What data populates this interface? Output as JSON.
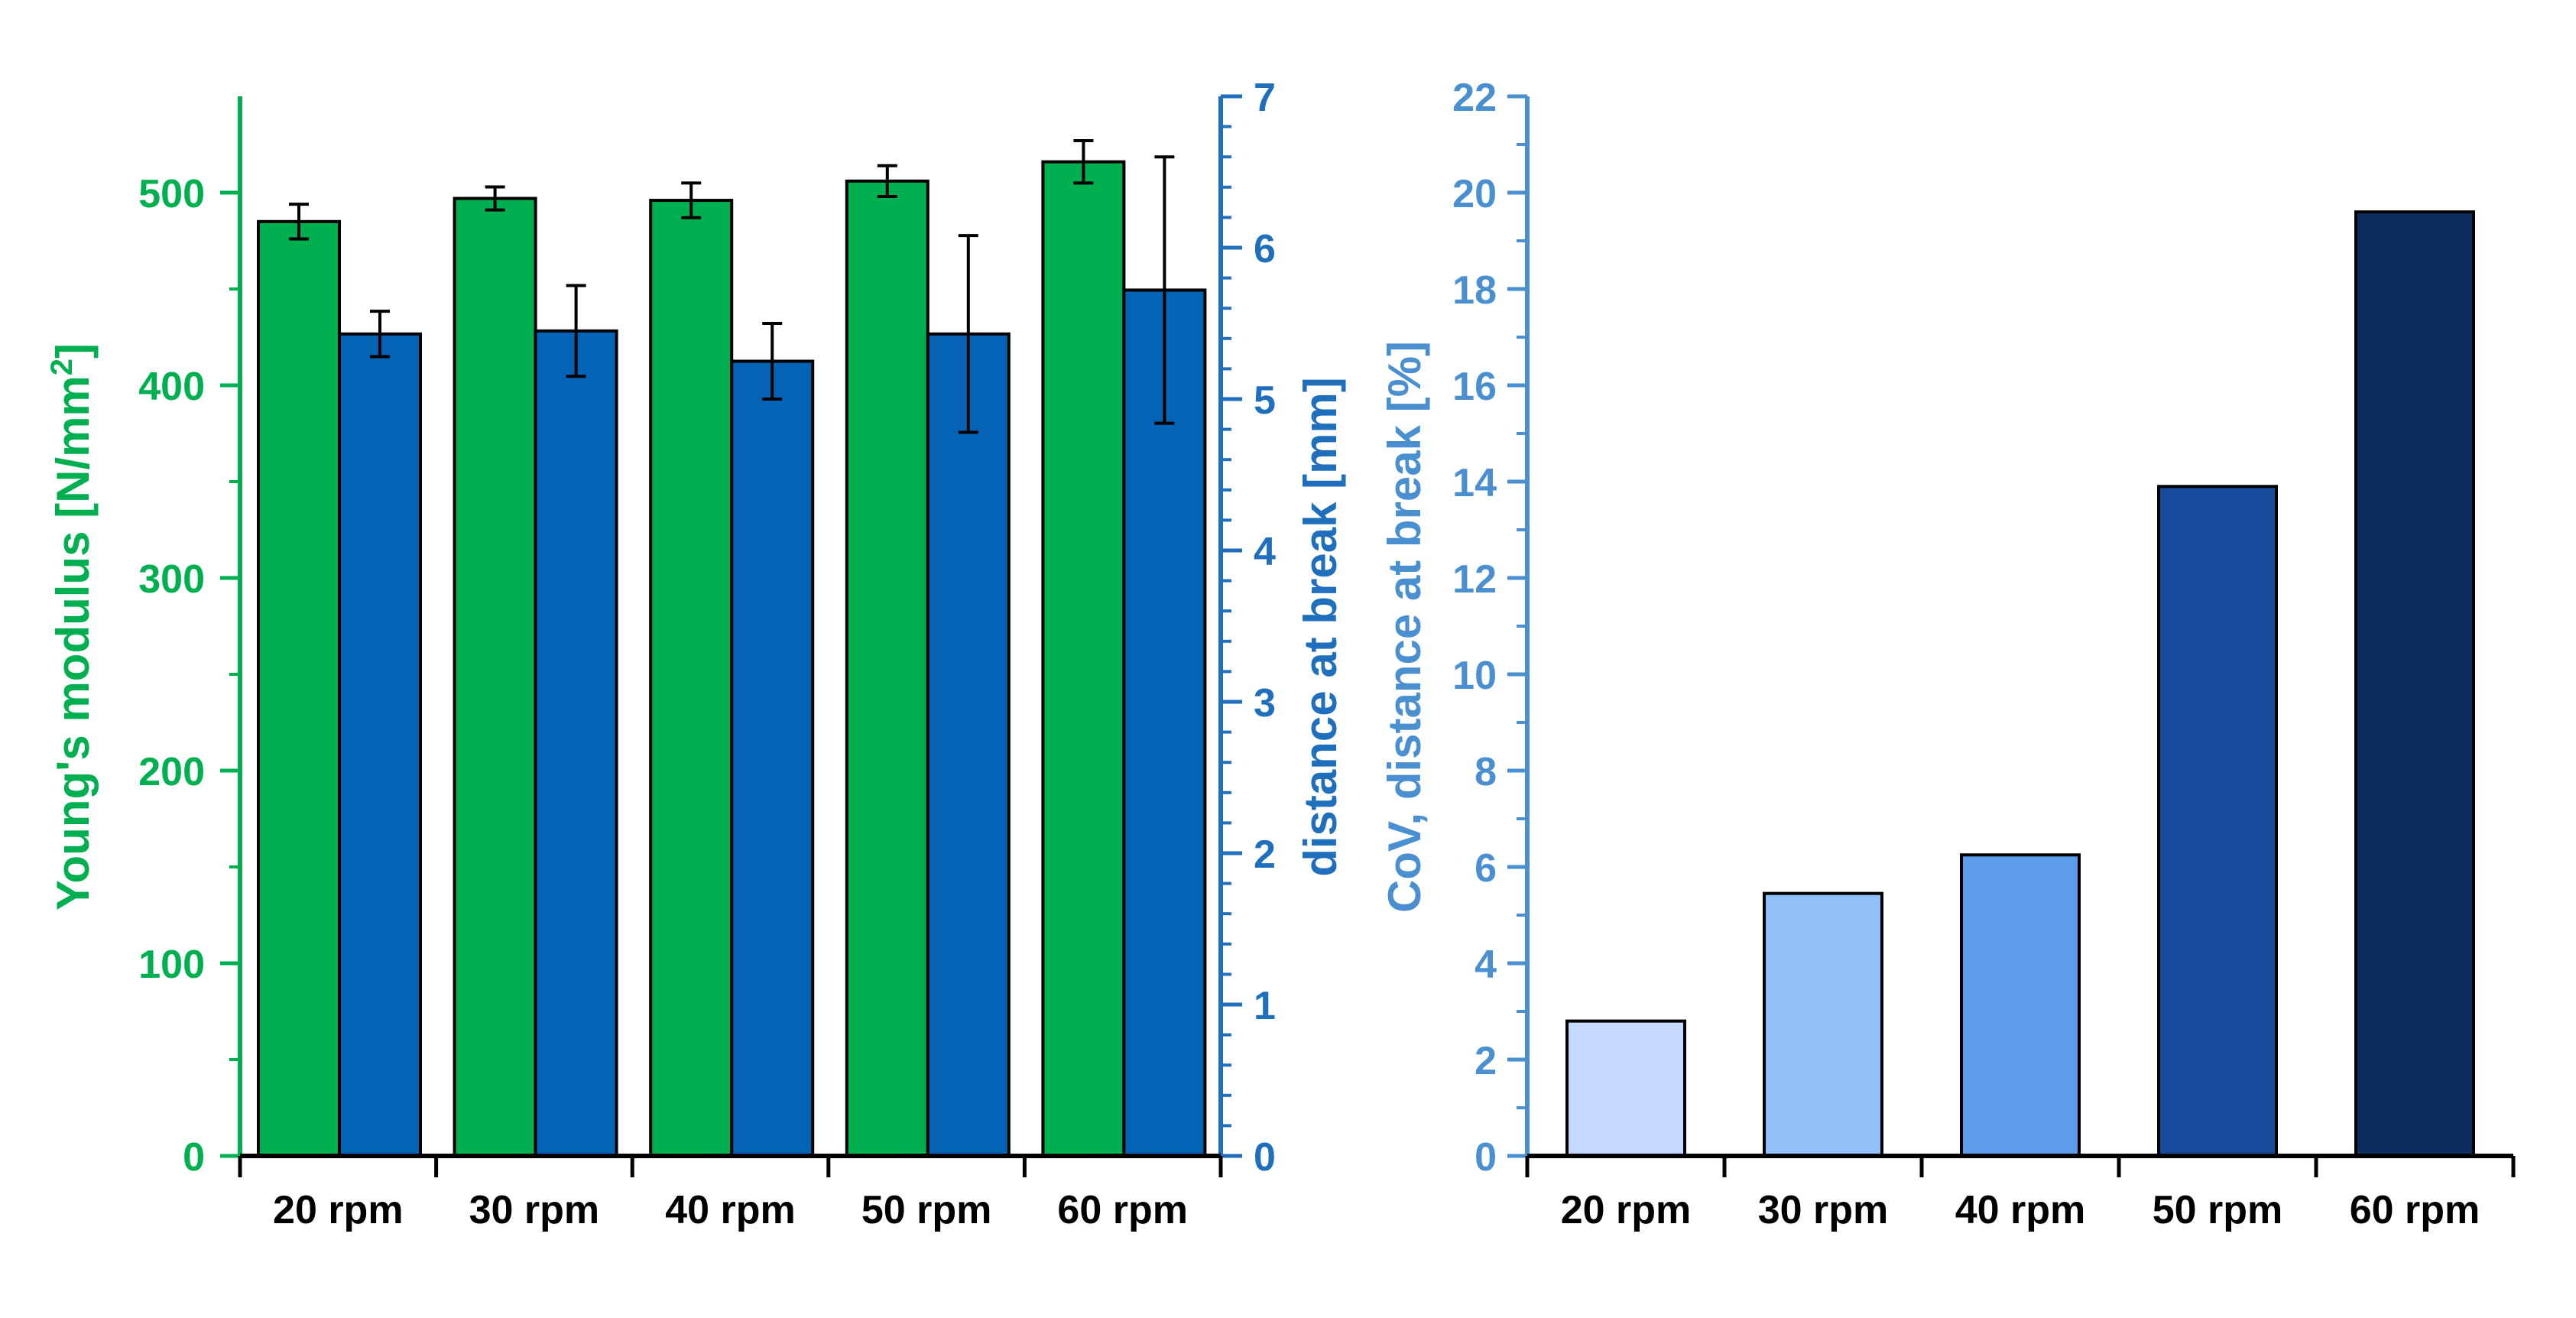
{
  "chart_data": [
    {
      "type": "bar",
      "categories": [
        "20 rpm",
        "30 rpm",
        "40 rpm",
        "50 rpm",
        "60 rpm"
      ],
      "series": [
        {
          "name": "Young's modulus",
          "axis": "left",
          "color": "#00B050",
          "values": [
            485,
            497,
            496,
            506,
            516
          ],
          "errors": [
            9,
            6,
            9,
            8,
            11
          ]
        },
        {
          "name": "distance at break",
          "axis": "right",
          "color": "#0563B6",
          "values": [
            5.43,
            5.45,
            5.25,
            5.43,
            5.72
          ],
          "errors": [
            0.15,
            0.3,
            0.25,
            0.65,
            0.88
          ]
        }
      ],
      "left_axis": {
        "label_main": "Young's modulus [N/mm",
        "label_sup": "2",
        "label_end": "]",
        "ylim": [
          0,
          550
        ],
        "ticks": [
          "0",
          "100",
          "200",
          "300",
          "400",
          "500"
        ],
        "tick_values": [
          0,
          100,
          200,
          300,
          400,
          500
        ],
        "color": "#00B050"
      },
      "right_axis": {
        "label": "distance at break [mm]",
        "ylim": [
          0,
          7
        ],
        "ticks": [
          "0",
          "1",
          "2",
          "3",
          "4",
          "5",
          "6",
          "7"
        ],
        "tick_values": [
          0,
          1,
          2,
          3,
          4,
          5,
          6,
          7
        ],
        "color": "#1F6FBD"
      }
    },
    {
      "type": "bar",
      "categories": [
        "20 rpm",
        "30 rpm",
        "40 rpm",
        "50 rpm",
        "60 rpm"
      ],
      "values": [
        2.8,
        5.45,
        6.25,
        13.9,
        19.6
      ],
      "bar_colors": [
        "#C5D9FF",
        "#91BFF7",
        "#5D9BEB",
        "#174A9A",
        "#0C2C5E"
      ],
      "ylabel": "CoV, distance at break [%]",
      "ylim": [
        0,
        22
      ],
      "ticks": [
        "0",
        "2",
        "4",
        "6",
        "8",
        "10",
        "12",
        "14",
        "16",
        "18",
        "20",
        "22"
      ],
      "tick_values": [
        0,
        2,
        4,
        6,
        8,
        10,
        12,
        14,
        16,
        18,
        20,
        22
      ],
      "axis_color": "#4A8FD0"
    }
  ]
}
